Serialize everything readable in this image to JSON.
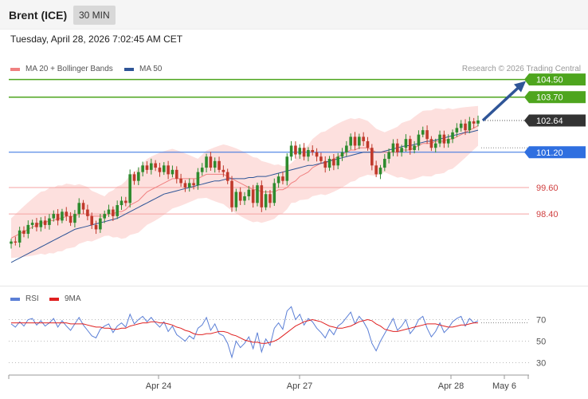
{
  "instrument": "Brent (ICE)",
  "timeframe": "30 MIN",
  "datetime": "Tuesday, April 28, 2026 7:02:45 AM CET",
  "credit": "Research © 2026 Trading Central",
  "legend_price": [
    {
      "label": "MA 20 + Bollinger Bands",
      "color": "#f08080"
    },
    {
      "label": "MA 50",
      "color": "#2f5597"
    }
  ],
  "legend_rsi": [
    {
      "label": "RSI",
      "color": "#5b7fd6"
    },
    {
      "label": "9MA",
      "color": "#e02020"
    }
  ],
  "colors": {
    "candle_up": "#2e8b2e",
    "candle_down": "#c0392b",
    "band_fill": "#fde0de",
    "target_line": "#4ea51e",
    "pivot_line": "#2f6fe0",
    "support_line": "#f4a3a3",
    "current_label": "#333333",
    "arrow": "#2f5597"
  },
  "chart_data": {
    "type": "candlestick",
    "y_range": [
      95.0,
      105.5
    ],
    "levels": [
      {
        "value": 104.5,
        "label": "104.50",
        "role": "target"
      },
      {
        "value": 103.7,
        "label": "103.70",
        "role": "target"
      },
      {
        "value": 102.64,
        "label": "102.64",
        "role": "last"
      },
      {
        "value": 101.2,
        "label": "101.20",
        "role": "pivot"
      },
      {
        "value": 99.6,
        "label": "99.60",
        "role": "support"
      },
      {
        "value": 98.4,
        "label": "98.40",
        "role": "support"
      }
    ],
    "x_ticks": [
      "Apr 24",
      "Apr 27",
      "Apr 28",
      "May 6"
    ],
    "closes": [
      97.15,
      97.1,
      97.65,
      97.5,
      97.9,
      98.0,
      97.8,
      98.1,
      97.9,
      98.2,
      98.4,
      98.1,
      98.5,
      98.3,
      98.0,
      98.4,
      98.9,
      98.6,
      98.3,
      97.9,
      97.7,
      98.2,
      98.4,
      98.6,
      98.3,
      98.8,
      99.0,
      98.9,
      100.2,
      99.9,
      100.3,
      100.6,
      100.4,
      100.7,
      100.5,
      100.3,
      100.6,
      100.2,
      100.4,
      100.0,
      99.8,
      99.6,
      99.8,
      99.7,
      100.3,
      100.5,
      101.0,
      100.5,
      100.8,
      100.4,
      100.3,
      99.9,
      98.7,
      99.4,
      99.0,
      99.2,
      99.5,
      98.9,
      99.7,
      98.7,
      99.3,
      98.9,
      99.8,
      100.1,
      99.9,
      101.0,
      101.5,
      101.1,
      101.4,
      101.0,
      101.3,
      101.2,
      101.0,
      100.8,
      100.5,
      100.9,
      100.6,
      101.0,
      101.2,
      101.5,
      101.9,
      101.5,
      101.9,
      101.7,
      101.4,
      100.6,
      100.2,
      100.5,
      100.9,
      101.2,
      101.6,
      101.2,
      101.4,
      101.8,
      101.3,
      101.5,
      102.0,
      102.2,
      101.8,
      101.4,
      101.6,
      102.0,
      101.6,
      101.8,
      102.1,
      102.3,
      102.5,
      102.2,
      102.6,
      102.5,
      102.64
    ],
    "ma20": [
      97.3,
      97.4,
      97.5,
      97.6,
      97.7,
      97.8,
      97.9,
      98.0,
      98.0,
      98.1,
      98.1,
      98.2,
      98.2,
      98.3,
      98.3,
      98.3,
      98.4,
      98.4,
      98.4,
      98.3,
      98.3,
      98.3,
      98.3,
      98.4,
      98.4,
      98.5,
      98.5,
      98.6,
      98.8,
      98.9,
      99.0,
      99.2,
      99.4,
      99.5,
      99.6,
      99.7,
      99.8,
      99.9,
      100.0,
      100.0,
      100.0,
      100.0,
      100.0,
      100.0,
      100.0,
      100.1,
      100.2,
      100.2,
      100.2,
      100.2,
      100.2,
      100.1,
      100.0,
      99.9,
      99.8,
      99.7,
      99.6,
      99.5,
      99.5,
      99.4,
      99.4,
      99.4,
      99.4,
      99.5,
      99.5,
      99.6,
      99.8,
      99.9,
      100.1,
      100.2,
      100.3,
      100.5,
      100.6,
      100.7,
      100.7,
      100.8,
      100.9,
      101.0,
      101.1,
      101.2,
      101.3,
      101.3,
      101.4,
      101.4,
      101.4,
      101.3,
      101.2,
      101.2,
      101.2,
      101.2,
      101.2,
      101.2,
      101.3,
      101.3,
      101.3,
      101.4,
      101.5,
      101.6,
      101.6,
      101.6,
      101.7,
      101.7,
      101.7,
      101.8,
      101.8,
      101.9,
      102.0,
      102.1,
      102.2,
      102.3,
      102.4
    ],
    "ma50": [
      96.2,
      96.3,
      96.4,
      96.5,
      96.6,
      96.7,
      96.8,
      96.9,
      97.0,
      97.1,
      97.2,
      97.3,
      97.4,
      97.5,
      97.6,
      97.7,
      97.75,
      97.8,
      97.85,
      97.9,
      97.95,
      98.0,
      98.05,
      98.1,
      98.15,
      98.2,
      98.3,
      98.4,
      98.5,
      98.6,
      98.7,
      98.8,
      98.9,
      99.0,
      99.1,
      99.2,
      99.3,
      99.35,
      99.4,
      99.45,
      99.5,
      99.55,
      99.6,
      99.65,
      99.7,
      99.75,
      99.8,
      99.85,
      99.9,
      99.9,
      99.95,
      100.0,
      100.0,
      100.0,
      100.0,
      100.0,
      100.05,
      100.05,
      100.1,
      100.1,
      100.1,
      100.15,
      100.2,
      100.25,
      100.3,
      100.35,
      100.4,
      100.45,
      100.5,
      100.55,
      100.6,
      100.6,
      100.65,
      100.7,
      100.75,
      100.8,
      100.85,
      100.9,
      100.95,
      101.0,
      101.05,
      101.1,
      101.15,
      101.2,
      101.2,
      101.2,
      101.2,
      101.2,
      101.25,
      101.3,
      101.35,
      101.4,
      101.45,
      101.5,
      101.5,
      101.55,
      101.6,
      101.65,
      101.7,
      101.7,
      101.75,
      101.8,
      101.85,
      101.9,
      101.95,
      102.0,
      102.05,
      102.1,
      102.1,
      102.15,
      102.2
    ],
    "rsi": [
      66,
      63,
      68,
      64,
      70,
      71,
      65,
      69,
      64,
      67,
      71,
      63,
      69,
      64,
      60,
      66,
      72,
      65,
      60,
      55,
      53,
      61,
      64,
      66,
      58,
      64,
      67,
      63,
      75,
      66,
      70,
      73,
      68,
      72,
      67,
      63,
      68,
      59,
      64,
      56,
      53,
      50,
      55,
      52,
      62,
      65,
      72,
      60,
      66,
      57,
      55,
      48,
      35,
      50,
      44,
      48,
      54,
      43,
      58,
      40,
      52,
      46,
      62,
      67,
      61,
      78,
      82,
      70,
      75,
      65,
      71,
      68,
      62,
      58,
      53,
      61,
      56,
      64,
      67,
      72,
      77,
      66,
      73,
      68,
      61,
      48,
      41,
      50,
      57,
      64,
      71,
      60,
      64,
      70,
      57,
      62,
      70,
      73,
      62,
      54,
      59,
      67,
      58,
      62,
      68,
      71,
      73,
      64,
      71,
      67,
      69
    ],
    "rsi_ma": [
      67,
      67,
      67,
      67,
      67,
      67,
      67,
      67,
      67,
      67,
      67,
      67,
      67,
      67,
      66,
      66,
      66,
      66,
      65,
      64,
      63,
      63,
      62,
      62,
      61,
      61,
      62,
      62,
      64,
      65,
      66,
      67,
      67,
      68,
      68,
      67,
      67,
      66,
      65,
      63,
      62,
      60,
      59,
      57,
      56,
      56,
      57,
      57,
      58,
      59,
      59,
      58,
      56,
      55,
      53,
      51,
      50,
      49,
      49,
      48,
      48,
      49,
      50,
      52,
      55,
      58,
      61,
      64,
      66,
      68,
      69,
      70,
      69,
      68,
      66,
      64,
      63,
      62,
      62,
      63,
      64,
      66,
      68,
      69,
      70,
      69,
      66,
      64,
      61,
      60,
      59,
      59,
      60,
      61,
      62,
      63,
      64,
      65,
      66,
      66,
      66,
      65,
      64,
      63,
      63,
      64,
      65,
      65,
      66,
      67,
      67
    ],
    "rsi_levels": [
      70,
      50,
      30
    ],
    "rsi_range": [
      20,
      80
    ]
  }
}
